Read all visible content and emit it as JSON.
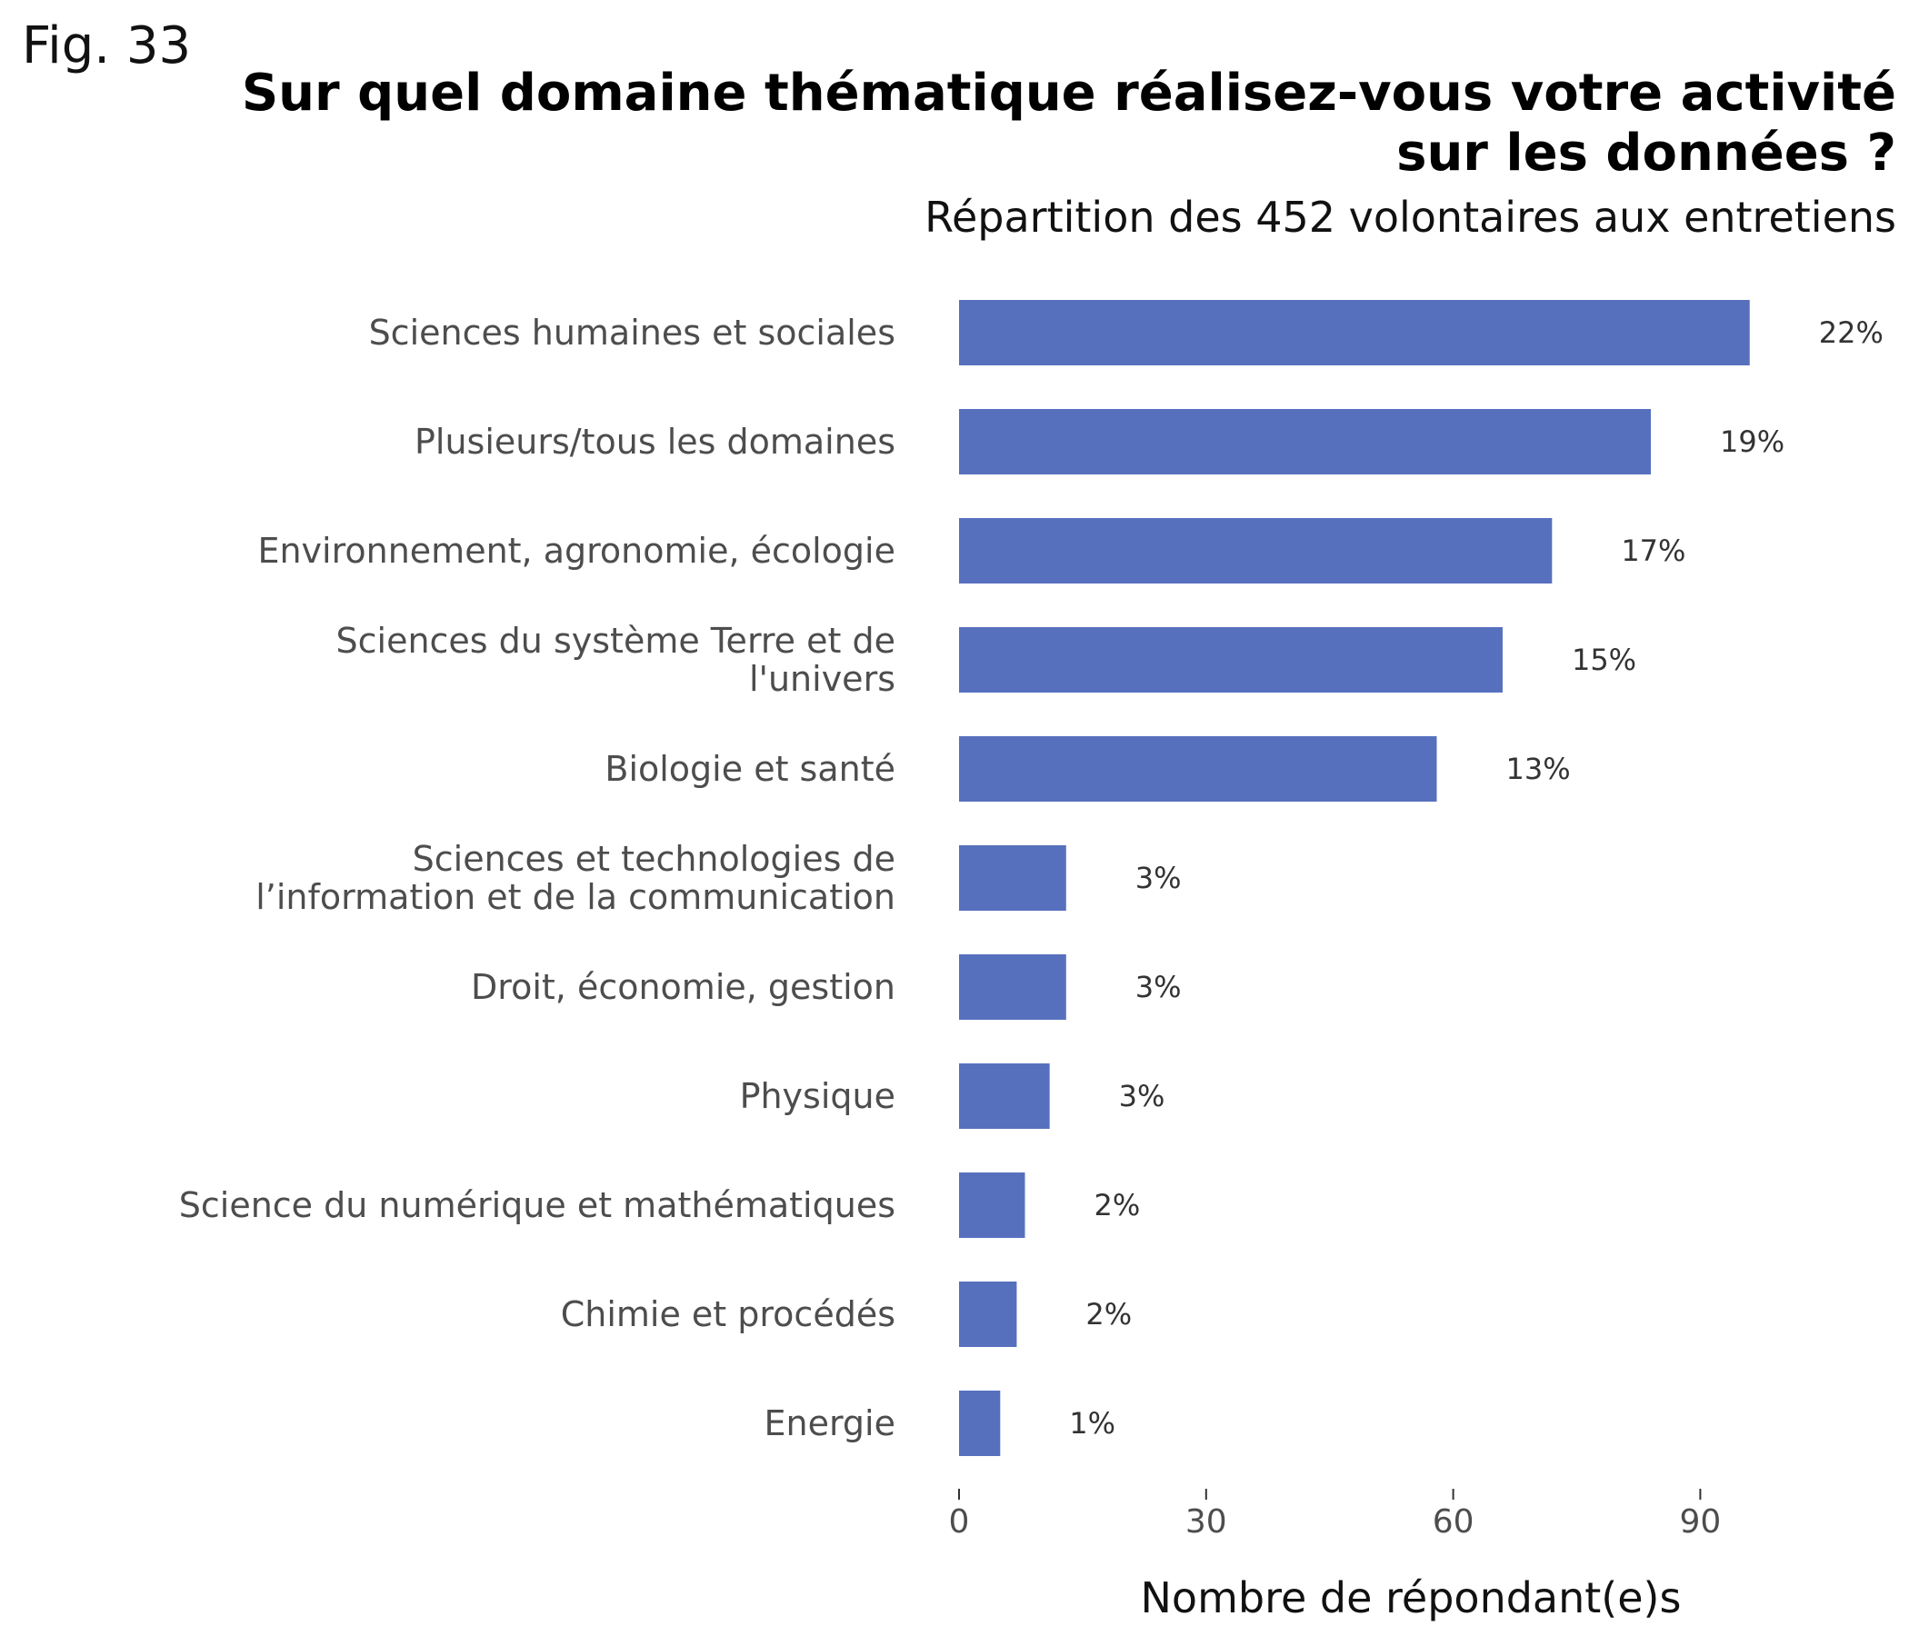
{
  "figure_label": "Fig. 33",
  "chart_data": {
    "type": "bar",
    "orientation": "horizontal",
    "title": "Sur quel domaine thématique réalisez-vous votre activité sur les données ?",
    "subtitle": "Répartition des 452 volontaires aux entretiens",
    "xlabel": "Nombre de répondant(e)s",
    "ylabel": "",
    "xlim": [
      0,
      112
    ],
    "xticks": [
      0,
      30,
      60,
      90
    ],
    "grid": false,
    "bar_color": "#5770be",
    "categories": [
      "Sciences humaines et sociales",
      "Plusieurs/tous les domaines",
      "Environnement, agronomie, écologie",
      "Sciences du système Terre et de\nl'univers",
      "Biologie et santé",
      "Sciences et technologies de\nl’information et de la communication",
      "Droit, économie, gestion",
      "Physique",
      "Science du numérique et mathématiques",
      "Chimie et procédés",
      "Energie"
    ],
    "values": [
      96,
      84,
      72,
      66,
      58,
      13,
      13,
      11,
      8,
      7,
      5
    ],
    "labels": [
      "22%",
      "19%",
      "17%",
      "15%",
      "13%",
      "3%",
      "3%",
      "3%",
      "2%",
      "2%",
      "1%"
    ]
  }
}
